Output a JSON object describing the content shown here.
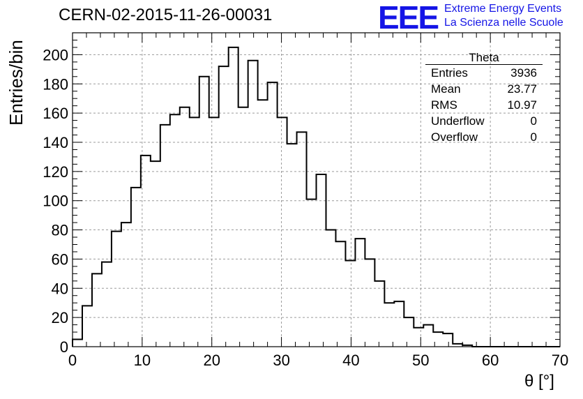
{
  "title": "CERN-02-2015-11-26-00031",
  "logo": {
    "mark": "EEE",
    "line1": "Extreme Energy Events",
    "line2": "La Scienza nelle Scuole",
    "color": "#1515e6"
  },
  "stats_box": {
    "name": "Theta",
    "rows": [
      {
        "label": "Entries",
        "value": "3936"
      },
      {
        "label": "Mean",
        "value": "23.77"
      },
      {
        "label": "RMS",
        "value": "10.97"
      },
      {
        "label": "Underflow",
        "value": "0"
      },
      {
        "label": "Overflow",
        "value": "0"
      }
    ]
  },
  "chart_data": {
    "type": "bar",
    "subtype": "step-histogram",
    "xlabel": "θ [°]",
    "ylabel": "Entries/bin",
    "xlim": [
      0,
      70
    ],
    "ylim": [
      0,
      215
    ],
    "grid": true,
    "bin_width": 1.4,
    "x_ticks": [
      0,
      10,
      20,
      30,
      40,
      50,
      60,
      70
    ],
    "y_ticks": [
      0,
      20,
      40,
      60,
      80,
      100,
      120,
      140,
      160,
      180,
      200
    ],
    "values": [
      5,
      28,
      50,
      58,
      79,
      85,
      109,
      131,
      127,
      152,
      159,
      164,
      157,
      185,
      157,
      192,
      205,
      164,
      196,
      169,
      181,
      157,
      139,
      147,
      101,
      118,
      80,
      72,
      59,
      74,
      60,
      45,
      30,
      31,
      20,
      13,
      15,
      10,
      9,
      2,
      1,
      0,
      0,
      0,
      0,
      0,
      0,
      0,
      0,
      0
    ],
    "line_color": "#000000"
  }
}
